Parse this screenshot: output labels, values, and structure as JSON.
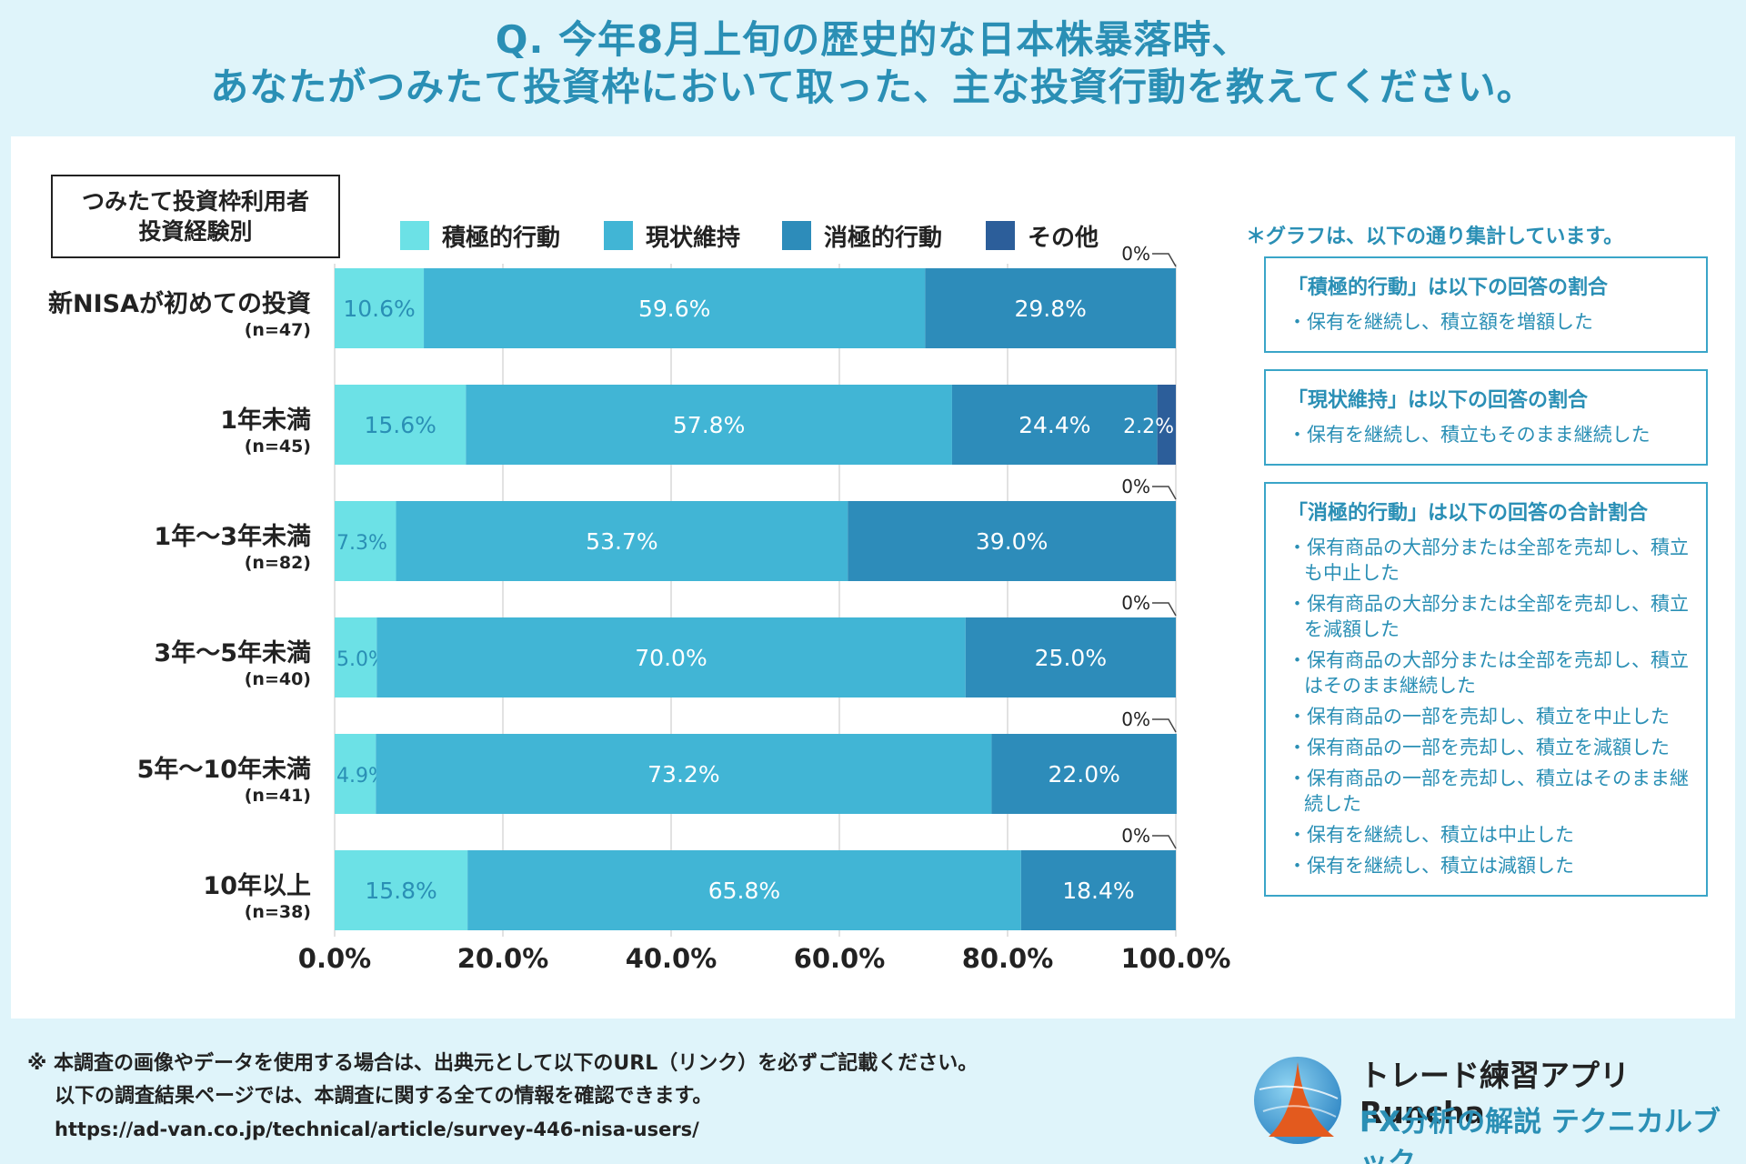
{
  "title_line1": "Q. 今年8月上旬の歴史的な日本株暴落時、",
  "title_line2": "あなたがつみたて投資枠において取った、主な投資行動を教えてください。",
  "group_label_line1": "つみたて投資枠利用者",
  "group_label_line2": "投資経験別",
  "colors": {
    "active": "#6ce1e6",
    "maintain": "#41b5d5",
    "passive": "#2d8cba",
    "other": "#2c5e9a",
    "text_on_light": "#2a8fb5"
  },
  "chart_data": {
    "type": "bar",
    "orientation": "horizontal",
    "stacked": true,
    "categories": [
      "新NISAが初めての投資",
      "1年未満",
      "1年～3年未満",
      "3年～5年未満",
      "5年～10年未満",
      "10年以上"
    ],
    "category_n": [
      "(n=47)",
      "(n=45)",
      "(n=82)",
      "(n=40)",
      "(n=41)",
      "(n=38)"
    ],
    "series": [
      {
        "name": "積極的行動",
        "values": [
          10.6,
          15.6,
          7.3,
          5.0,
          4.9,
          15.8
        ],
        "labels": [
          "10.6%",
          "15.6%",
          "7.3%",
          "5.0%",
          "4.9%",
          "15.8%"
        ]
      },
      {
        "name": "現状維持",
        "values": [
          59.6,
          57.8,
          53.7,
          70.0,
          73.2,
          65.8
        ],
        "labels": [
          "59.6%",
          "57.8%",
          "53.7%",
          "70.0%",
          "73.2%",
          "65.8%"
        ]
      },
      {
        "name": "消極的行動",
        "values": [
          29.8,
          24.4,
          39.0,
          25.0,
          22.0,
          18.4
        ],
        "labels": [
          "29.8%",
          "24.4%",
          "39.0%",
          "25.0%",
          "22.0%",
          "18.4%"
        ]
      },
      {
        "name": "その他",
        "values": [
          0,
          2.2,
          0,
          0,
          0,
          0
        ],
        "labels": [
          "0%",
          "2.2%",
          "0%",
          "0%",
          "0%",
          "0%"
        ]
      }
    ],
    "xlim": [
      0,
      100
    ],
    "xticks": [
      "0.0%",
      "20.0%",
      "40.0%",
      "60.0%",
      "80.0%",
      "100.0%"
    ],
    "grid": true,
    "legend_position": "top"
  },
  "notes": {
    "header": "＊グラフは、以下の通り集計しています。",
    "boxes": [
      {
        "title": "「積極的行動」は以下の回答の割合",
        "items": [
          "保有を継続し、積立額を増額した"
        ]
      },
      {
        "title": "「現状維持」は以下の回答の割合",
        "items": [
          "保有を継続し、積立もそのまま継続した"
        ]
      },
      {
        "title": "「消極的行動」は以下の回答の合計割合",
        "items": [
          "保有商品の大部分または全部を売却し、積立も中止した",
          "保有商品の大部分または全部を売却し、積立を減額した",
          "保有商品の大部分または全部を売却し、積立はそのまま継続した",
          "保有商品の一部を売却し、積立を中止した",
          "保有商品の一部を売却し、積立を減額した",
          "保有商品の一部を売却し、積立はそのまま継続した",
          "保有を継続し、積立は中止した",
          "保有を継続し、積立は減額した"
        ]
      }
    ]
  },
  "footer": {
    "line1": "※ 本調査の画像やデータを使用する場合は、出典元として以下のURL（リンク）を必ずご記載ください。",
    "line2": "以下の調査結果ページでは、本調査に関する全ての情報を確認できます。",
    "url": "https://ad-van.co.jp/technical/article/survey-446-nisa-users/"
  },
  "brand": {
    "name": "トレード練習アプリ Runcha",
    "subtitle": "FX分析の解説 テクニカルブック"
  }
}
